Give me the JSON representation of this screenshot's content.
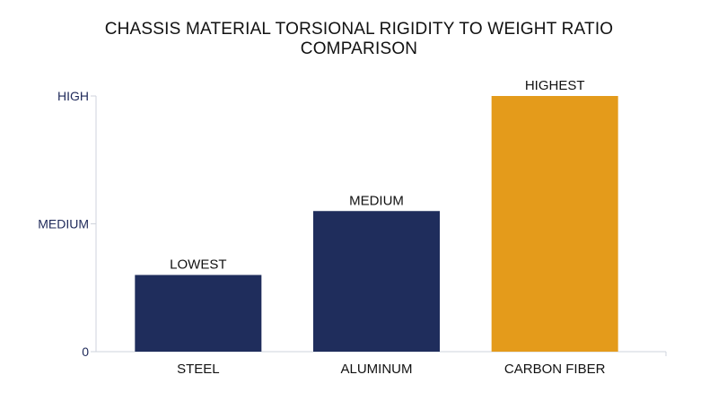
{
  "chart_data": {
    "type": "bar",
    "title_lines": [
      "CHASSIS MATERIAL TORSIONAL RIGIDITY TO WEIGHT RATIO",
      "COMPARISON"
    ],
    "categories": [
      "STEEL",
      "ALUMINUM",
      "CARBON FIBER"
    ],
    "values": [
      30,
      55,
      100
    ],
    "data_labels": [
      "LOWEST",
      "MEDIUM",
      "HIGHEST"
    ],
    "bar_colors": [
      "#1f2d5c",
      "#1f2d5c",
      "#e49b1b"
    ],
    "y_ticks": [
      {
        "value": 0,
        "label": "0"
      },
      {
        "value": 50,
        "label": "MEDIUM"
      },
      {
        "value": 100,
        "label": "HIGH"
      }
    ],
    "ylim": [
      0,
      100
    ],
    "xlabel": "",
    "ylabel": "",
    "grid": false,
    "axis_color": "#cfd3dc"
  }
}
